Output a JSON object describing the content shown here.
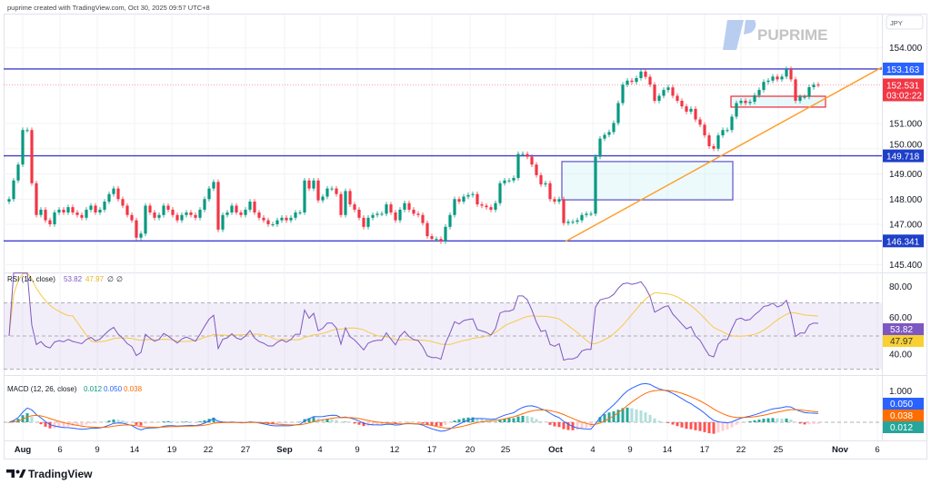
{
  "header": {
    "caption": "puprime created with TradingView.com, Oct 30, 2025 09:57 UTC+8"
  },
  "watermark": {
    "brand": "PUPRIME",
    "color": "#b9cdf0"
  },
  "footer": {
    "logo_text": "TradingView"
  },
  "price_axis": {
    "currency": "JPY",
    "ticks": [
      "154.000",
      "151.000",
      "150.000",
      "149.000",
      "148.000",
      "147.000",
      "145.400"
    ],
    "tick_values": [
      154,
      151,
      150,
      149,
      148,
      147,
      145.4
    ],
    "last_price": "152.531",
    "countdown": "03:02:22",
    "last_price_value": 152.531
  },
  "colors": {
    "up": "#089981",
    "down": "#f23645",
    "level": "#3f3fd0",
    "trendline": "#ff9f2e",
    "zone": "#6a5fc8",
    "rsi": "#7e57c2",
    "rsi_ma": "#f7c948",
    "macd": "#2962ff",
    "signal": "#ff6d00",
    "last_price": "#f23645"
  },
  "chart_data": [
    {
      "type": "candlestick",
      "symbol_currency": "JPY",
      "x_ticks": [
        "Aug",
        "6",
        "9",
        "14",
        "19",
        "22",
        "27",
        "Sep",
        "4",
        "9",
        "12",
        "17",
        "20",
        "25",
        "Oct",
        "4",
        "9",
        "14",
        "17",
        "22",
        "25",
        "Nov",
        "6"
      ],
      "ylim": [
        145.2,
        154.4
      ],
      "grid": true,
      "closes": [
        148.0,
        148.74,
        149.37,
        150.74,
        150.74,
        148.63,
        147.37,
        147.58,
        147.16,
        147.0,
        147.47,
        147.58,
        147.47,
        147.68,
        147.47,
        147.37,
        147.26,
        147.58,
        147.74,
        147.47,
        147.58,
        147.9,
        148.2,
        148.42,
        148.0,
        147.74,
        147.37,
        147.16,
        146.47,
        146.63,
        147.74,
        147.47,
        147.26,
        147.37,
        147.74,
        147.58,
        147.37,
        147.16,
        147.37,
        147.47,
        147.37,
        147.26,
        147.58,
        148.0,
        148.42,
        148.68,
        146.79,
        147.37,
        147.47,
        147.74,
        147.47,
        147.37,
        147.58,
        147.9,
        147.47,
        147.26,
        147.16,
        147.0,
        147.0,
        147.16,
        147.26,
        147.16,
        147.26,
        147.47,
        147.47,
        148.74,
        148.42,
        148.74,
        147.95,
        148.1,
        148.42,
        148.42,
        148.2,
        147.37,
        148.32,
        147.79,
        147.58,
        147.26,
        146.9,
        147.26,
        147.37,
        147.42,
        147.42,
        147.79,
        147.47,
        147.16,
        147.58,
        147.84,
        147.58,
        147.42,
        147.37,
        147.05,
        146.53,
        146.42,
        146.42,
        146.32,
        146.9,
        147.37,
        148.0,
        147.9,
        148.1,
        148.16,
        148.2,
        147.79,
        147.74,
        147.68,
        147.58,
        147.84,
        148.63,
        148.74,
        148.74,
        148.84,
        149.79,
        149.79,
        149.68,
        149.37,
        148.95,
        148.58,
        148.63,
        148.0,
        147.9,
        148.0,
        147.05,
        147.1,
        147.1,
        147.16,
        147.37,
        147.42,
        147.42,
        149.68,
        150.4,
        150.55,
        150.66,
        151.02,
        151.81,
        152.54,
        152.7,
        152.65,
        152.8,
        153.06,
        152.85,
        152.54,
        151.9,
        152.1,
        152.33,
        152.43,
        152.1,
        151.9,
        151.68,
        151.47,
        151.58,
        151.16,
        150.95,
        150.53,
        150.1,
        150.0,
        150.53,
        150.74,
        150.74,
        151.27,
        151.81,
        151.9,
        151.81,
        151.86,
        152.12,
        152.33,
        152.65,
        152.7,
        152.86,
        152.75,
        152.86,
        153.16,
        152.75,
        151.9,
        152.06,
        152.06,
        152.44,
        152.54,
        152.53
      ],
      "levels": [
        {
          "value": 153.163,
          "label": "153.163"
        },
        {
          "value": 149.718,
          "label": "149.718"
        },
        {
          "value": 146.341,
          "label": "146.341"
        }
      ],
      "trendline": {
        "start_price": 146.32,
        "end_price": 153.23
      },
      "zones": [
        {
          "kind": "demand",
          "top": 149.49,
          "bottom": 147.97
        },
        {
          "kind": "support",
          "top": 152.08,
          "bottom": 151.65
        }
      ]
    },
    {
      "type": "line",
      "title": "RSI (14, close)",
      "values_printed": [
        "53.82",
        "47.97",
        "∅",
        "∅"
      ],
      "series": [
        {
          "name": "RSI",
          "last": 53.82
        },
        {
          "name": "RSI-based MA",
          "last": 47.97
        }
      ],
      "y_ticks": [
        "80.00",
        "60.00",
        "40.00"
      ],
      "band": [
        30,
        70
      ],
      "ylim": [
        20,
        90
      ]
    },
    {
      "type": "bar+line",
      "title": "MACD (12, 26, close)",
      "values_printed": [
        "0.012",
        "0.050",
        "0.038"
      ],
      "series": [
        {
          "name": "Histogram",
          "last": 0.012
        },
        {
          "name": "MACD",
          "last": 0.05
        },
        {
          "name": "Signal",
          "last": 0.038
        }
      ],
      "y_ticks": [
        "1.000"
      ]
    }
  ]
}
